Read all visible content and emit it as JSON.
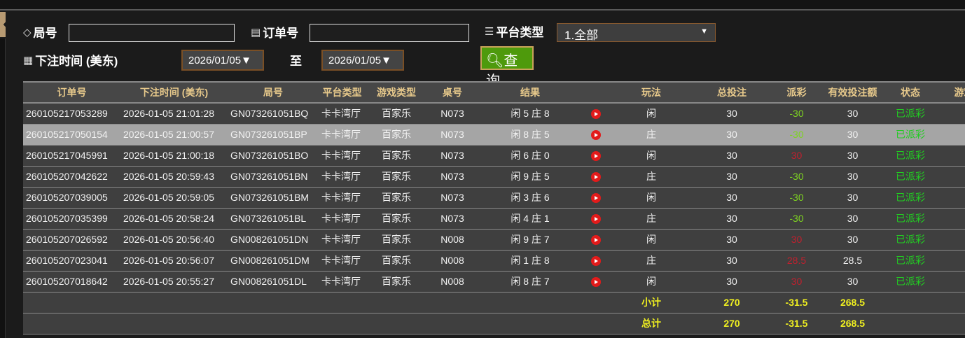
{
  "filters": {
    "round_label": "局号",
    "round_value": "",
    "order_label": "订单号",
    "order_value": "",
    "platform_label": "平台类型",
    "platform_value": "1.全部",
    "time_label": "下注时间 (美东)",
    "date_from": "2026/01/05▼",
    "to_label": "至",
    "date_to": "2026/01/05▼",
    "search_label": "查询"
  },
  "table": {
    "headers": [
      "订单号",
      "下注时间 (美东)",
      "局号",
      "平台类型",
      "游戏类型",
      "桌号",
      "结果",
      "",
      "玩法",
      "总投注",
      "派彩",
      "有效投注额",
      "状态",
      "游戏"
    ],
    "rows": [
      {
        "order": "260105217053289",
        "time": "2026-01-05 21:01:28",
        "round": "GN073261051BQ",
        "platform": "卡卡湾厅",
        "game": "百家乐",
        "table": "N073",
        "result": "闲 5 庄 8",
        "play": "闲",
        "bet": "30",
        "payout": "-30",
        "payout_color": "#7ed321",
        "valid": "30",
        "status": "已派彩"
      },
      {
        "order": "260105217050154",
        "time": "2026-01-05 21:00:57",
        "round": "GN073261051BP",
        "platform": "卡卡湾厅",
        "game": "百家乐",
        "table": "N073",
        "result": "闲 8 庄 5",
        "play": "庄",
        "bet": "30",
        "payout": "-30",
        "payout_color": "#7ed321",
        "valid": "30",
        "status": "已派彩",
        "highlighted": true
      },
      {
        "order": "260105217045991",
        "time": "2026-01-05 21:00:18",
        "round": "GN073261051BO",
        "platform": "卡卡湾厅",
        "game": "百家乐",
        "table": "N073",
        "result": "闲 6 庄 0",
        "play": "闲",
        "bet": "30",
        "payout": "30",
        "payout_color": "#c0202e",
        "valid": "30",
        "status": "已派彩"
      },
      {
        "order": "260105207042622",
        "time": "2026-01-05 20:59:43",
        "round": "GN073261051BN",
        "platform": "卡卡湾厅",
        "game": "百家乐",
        "table": "N073",
        "result": "闲 9 庄 5",
        "play": "庄",
        "bet": "30",
        "payout": "-30",
        "payout_color": "#7ed321",
        "valid": "30",
        "status": "已派彩"
      },
      {
        "order": "260105207039005",
        "time": "2026-01-05 20:59:05",
        "round": "GN073261051BM",
        "platform": "卡卡湾厅",
        "game": "百家乐",
        "table": "N073",
        "result": "闲 3 庄 6",
        "play": "闲",
        "bet": "30",
        "payout": "-30",
        "payout_color": "#7ed321",
        "valid": "30",
        "status": "已派彩"
      },
      {
        "order": "260105207035399",
        "time": "2026-01-05 20:58:24",
        "round": "GN073261051BL",
        "platform": "卡卡湾厅",
        "game": "百家乐",
        "table": "N073",
        "result": "闲 4 庄 1",
        "play": "庄",
        "bet": "30",
        "payout": "-30",
        "payout_color": "#7ed321",
        "valid": "30",
        "status": "已派彩"
      },
      {
        "order": "260105207026592",
        "time": "2026-01-05 20:56:40",
        "round": "GN008261051DN",
        "platform": "卡卡湾厅",
        "game": "百家乐",
        "table": "N008",
        "result": "闲 9 庄 7",
        "play": "闲",
        "bet": "30",
        "payout": "30",
        "payout_color": "#c0202e",
        "valid": "30",
        "status": "已派彩"
      },
      {
        "order": "260105207023041",
        "time": "2026-01-05 20:56:07",
        "round": "GN008261051DM",
        "platform": "卡卡湾厅",
        "game": "百家乐",
        "table": "N008",
        "result": "闲 1 庄 8",
        "play": "庄",
        "bet": "30",
        "payout": "28.5",
        "payout_color": "#c0202e",
        "valid": "28.5",
        "status": "已派彩"
      },
      {
        "order": "260105207018642",
        "time": "2026-01-05 20:55:27",
        "round": "GN008261051DL",
        "platform": "卡卡湾厅",
        "game": "百家乐",
        "table": "N008",
        "result": "闲 8 庄 7",
        "play": "闲",
        "bet": "30",
        "payout": "30",
        "payout_color": "#c0202e",
        "valid": "30",
        "status": "已派彩"
      }
    ],
    "subtotal": {
      "label": "小计",
      "bet": "270",
      "payout": "-31.5",
      "valid": "268.5"
    },
    "total": {
      "label": "总计",
      "bet": "270",
      "payout": "-31.5",
      "valid": "268.5"
    }
  },
  "colors": {
    "status": "#22cc22",
    "summary": "#f0f020",
    "header_text": "#e7c98b",
    "search_button": "#4e9a0c"
  }
}
